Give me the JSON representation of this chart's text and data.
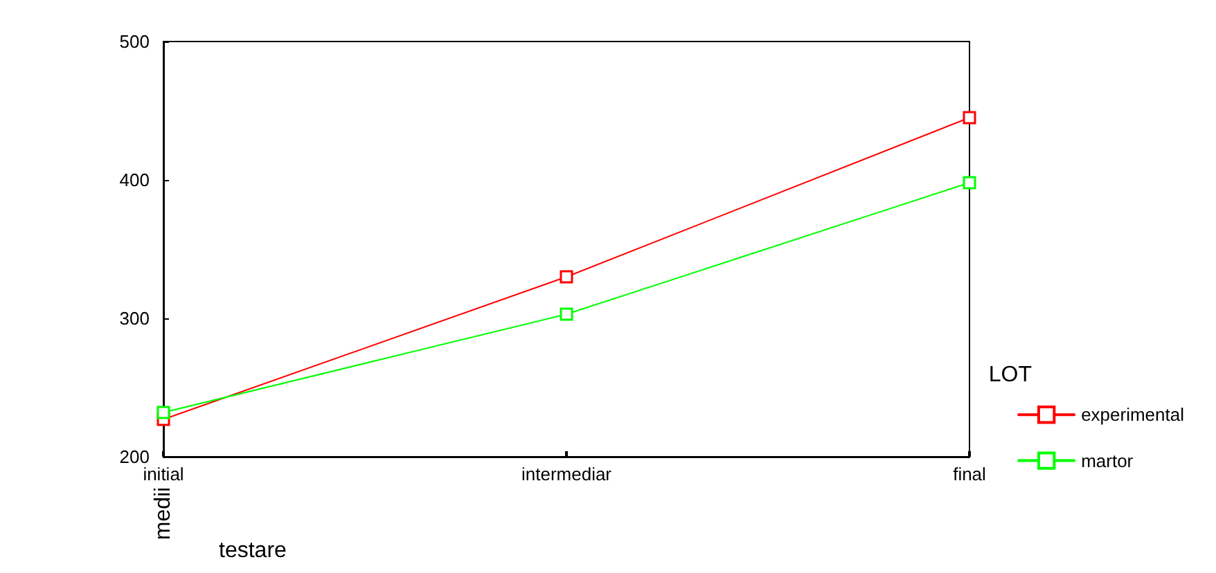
{
  "chart_data": {
    "type": "line",
    "xlabel": "testare",
    "ylabel": "medii",
    "legend_title": "LOT",
    "categories": [
      "initial",
      "intermediar",
      "final"
    ],
    "series": [
      {
        "name": "experimental",
        "color": "#ff0000",
        "values": [
          227,
          330,
          445
        ]
      },
      {
        "name": "martor",
        "color": "#00ff00",
        "values": [
          232,
          303,
          398
        ]
      }
    ],
    "ylim": [
      200,
      500
    ],
    "yticks": [
      200,
      300,
      400,
      500
    ],
    "grid": false,
    "legend": "right",
    "marker": "square",
    "line_style": "solid"
  }
}
